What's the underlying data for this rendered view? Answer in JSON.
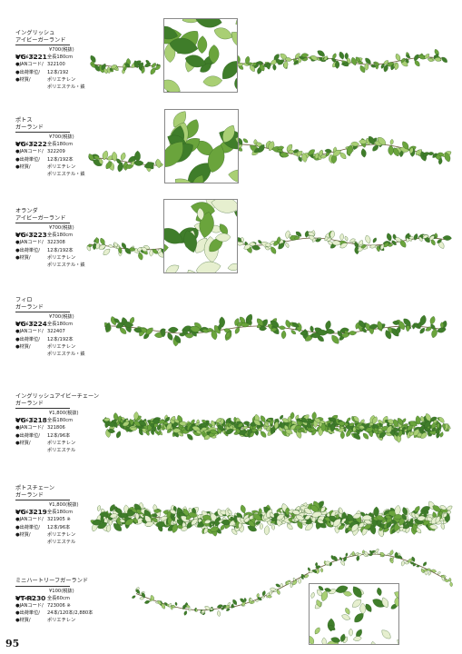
{
  "page_number": "95",
  "products": [
    {
      "name": [
        "イングリッシュ",
        "アイビーガーランド"
      ],
      "code": "VG-3221",
      "price": "¥700(税抜)",
      "specs": [
        {
          "k": "●サイズ/",
          "v": "全長180cm"
        },
        {
          "k": "●JANコード/",
          "v": "322100"
        },
        {
          "k": "●出荷単位/",
          "v": "12本/192"
        },
        {
          "k": "●材質/",
          "v": "ポリエチレン"
        },
        {
          "k": "",
          "v": "ポリエステル・鉄"
        }
      ]
    },
    {
      "name": [
        "ポトス",
        "ガーランド"
      ],
      "code": "VG-3222",
      "price": "¥700(税抜)",
      "specs": [
        {
          "k": "●サイズ/",
          "v": "全長180cm"
        },
        {
          "k": "●JANコード/",
          "v": "322209"
        },
        {
          "k": "●出荷単位/",
          "v": "12本/192本"
        },
        {
          "k": "●材質/",
          "v": "ポリエチレン"
        },
        {
          "k": "",
          "v": "ポリエステル・鉄"
        }
      ]
    },
    {
      "name": [
        "オランダ",
        "アイビーガーランド"
      ],
      "code": "VG-3223",
      "price": "¥700(税抜)",
      "specs": [
        {
          "k": "●サイズ/",
          "v": "全長180cm"
        },
        {
          "k": "●JANコード/",
          "v": "322308"
        },
        {
          "k": "●出荷単位/",
          "v": "12本/192本"
        },
        {
          "k": "●材質/",
          "v": "ポリエチレン"
        },
        {
          "k": "",
          "v": "ポリエステル・鉄"
        }
      ]
    },
    {
      "name": [
        "フィロ",
        "ガーランド"
      ],
      "code": "VG-3224",
      "price": "¥700(税抜)",
      "specs": [
        {
          "k": "●サイズ/",
          "v": "全長180cm"
        },
        {
          "k": "●JANコード/",
          "v": "322407"
        },
        {
          "k": "●出荷単位/",
          "v": "12本/192本"
        },
        {
          "k": "●材質/",
          "v": "ポリエチレン"
        },
        {
          "k": "",
          "v": "ポリエステル・鉄"
        }
      ]
    },
    {
      "name": [
        "イングリッシュアイビーチェーン",
        "ガーランド"
      ],
      "code": "VG-3218",
      "price": "¥1,800(税抜)",
      "specs": [
        {
          "k": "●サイズ/",
          "v": "全長180cm"
        },
        {
          "k": "●JANコード/",
          "v": "321806"
        },
        {
          "k": "●出荷単位/",
          "v": "12本/96本"
        },
        {
          "k": "●材質/",
          "v": "ポリエチレン"
        },
        {
          "k": "",
          "v": "ポリエステル"
        }
      ]
    },
    {
      "name": [
        "ポトスチェーン",
        "ガーランド"
      ],
      "code": "VG-3219",
      "price": "¥1,800(税抜)",
      "specs": [
        {
          "k": "●サイズ/",
          "v": "全長180cm"
        },
        {
          "k": "●JANコード/",
          "v": "321905 ※"
        },
        {
          "k": "●出荷単位/",
          "v": "12本/96本"
        },
        {
          "k": "●材質/",
          "v": "ポリエチレン"
        },
        {
          "k": "",
          "v": "ポリエステル"
        }
      ]
    },
    {
      "name": [
        "ミニハートリーフガーランド"
      ],
      "code": "VT-R230",
      "price": "¥100(税抜)",
      "specs": [
        {
          "k": "●サイズ/",
          "v": "全長60cm"
        },
        {
          "k": "●JANコード/",
          "v": "723006 ※"
        },
        {
          "k": "●出荷単位/",
          "v": "24本/120本/2,880本"
        },
        {
          "k": "●材質/",
          "v": "ポリエチレン"
        }
      ]
    }
  ],
  "colors": {
    "leaf_dark": "#3f7d2a",
    "leaf_mid": "#6aa43c",
    "leaf_light": "#a9cf74",
    "variegated": "#e6efcf",
    "stem": "#6b5a3a"
  }
}
